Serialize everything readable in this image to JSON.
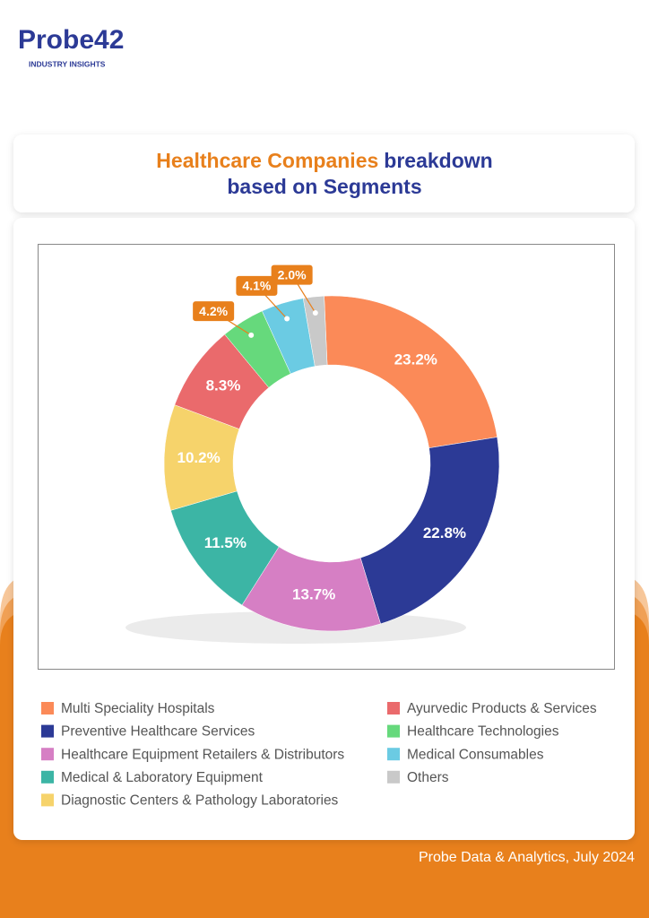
{
  "header": {
    "logo": "Probe42",
    "tagline": "INDUSTRY INSIGHTS"
  },
  "chart_data": {
    "type": "donut",
    "title": [
      "Healthcare Companies",
      "breakdown",
      "based on Segments"
    ],
    "categories": [
      "Multi Speciality Hospitals",
      "Preventive Healthcare Services",
      "Healthcare Equipment Retailers & Distributors",
      "Medical & Laboratory Equipment",
      "Diagnostic Centers & Pathology Laboratories",
      "Ayurvedic Products & Services",
      "Healthcare Technologies",
      "Medical Consumables",
      "Others"
    ],
    "values": [
      23.2,
      22.8,
      13.7,
      11.5,
      10.2,
      8.3,
      4.2,
      4.1,
      2.0
    ],
    "value_labels": [
      "23.2%",
      "22.8%",
      "13.7%",
      "11.5%",
      "10.2%",
      "8.3%",
      "4.2%",
      "4.1%",
      "2.0%"
    ],
    "colors": [
      "#fb8a58",
      "#2c3a96",
      "#d67fc4",
      "#3cb5a5",
      "#f6d36b",
      "#ea6a6c",
      "#66d97c",
      "#6bcbe3",
      "#c9c9c9"
    ]
  },
  "footer": {
    "source": "Probe Data & Analytics, July 2024"
  }
}
